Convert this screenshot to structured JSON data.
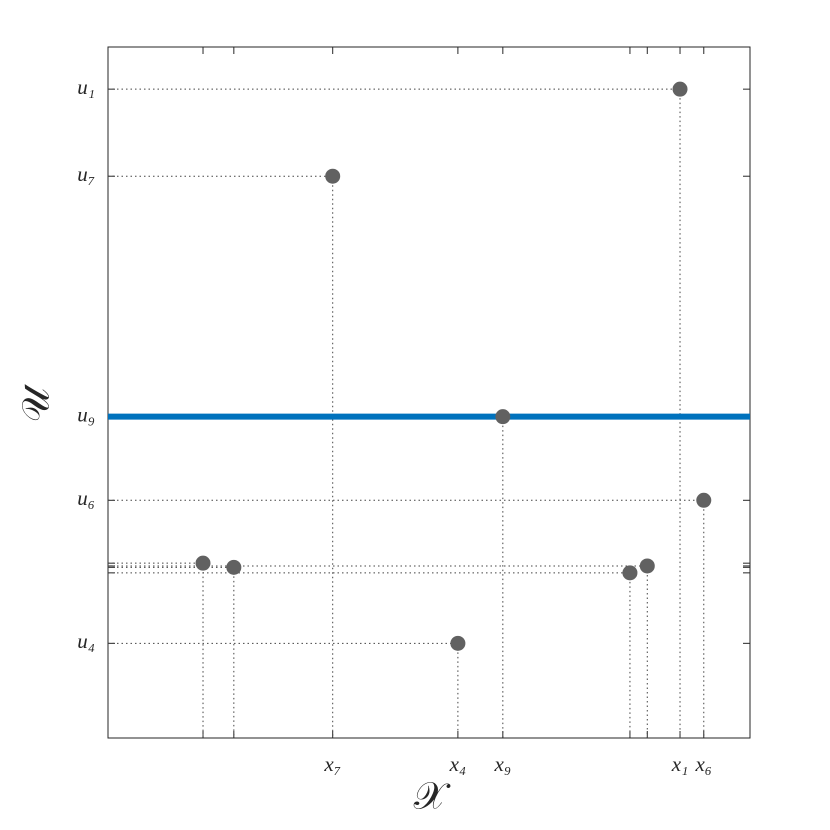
{
  "chart_data": {
    "type": "scatter",
    "x_label": "𝒳",
    "y_label": "𝒰",
    "x": [
      0.148,
      0.196,
      0.35,
      0.545,
      0.615,
      0.813,
      0.84,
      0.891,
      0.928
    ],
    "series": [
      {
        "color": "#616161",
        "values": [
          0.253,
          0.247,
          0.813,
          0.137,
          0.465,
          0.239,
          0.249,
          0.939,
          0.344
        ]
      }
    ],
    "hline": {
      "value": 0.465,
      "color": "#0072bd"
    },
    "xlim": [
      0,
      1
    ],
    "ylim": [
      0,
      1
    ],
    "xticks": [
      {
        "value": 0.148,
        "label": null
      },
      {
        "value": 0.196,
        "label": null
      },
      {
        "value": 0.35,
        "label": "x₇"
      },
      {
        "value": 0.545,
        "label": "x₄"
      },
      {
        "value": 0.615,
        "label": "x₉"
      },
      {
        "value": 0.813,
        "label": null
      },
      {
        "value": 0.84,
        "label": null
      },
      {
        "value": 0.891,
        "label": "x₁"
      },
      {
        "value": 0.928,
        "label": "x₆"
      }
    ],
    "yticks": [
      {
        "value": 0.137,
        "label": "u₄"
      },
      {
        "value": 0.239,
        "label": null
      },
      {
        "value": 0.247,
        "label": null
      },
      {
        "value": 0.249,
        "label": null
      },
      {
        "value": 0.253,
        "label": null
      },
      {
        "value": 0.344,
        "label": "u₆"
      },
      {
        "value": 0.465,
        "label": "u₉"
      },
      {
        "value": 0.813,
        "label": "u₇"
      },
      {
        "value": 0.939,
        "label": "u₁"
      }
    ]
  }
}
